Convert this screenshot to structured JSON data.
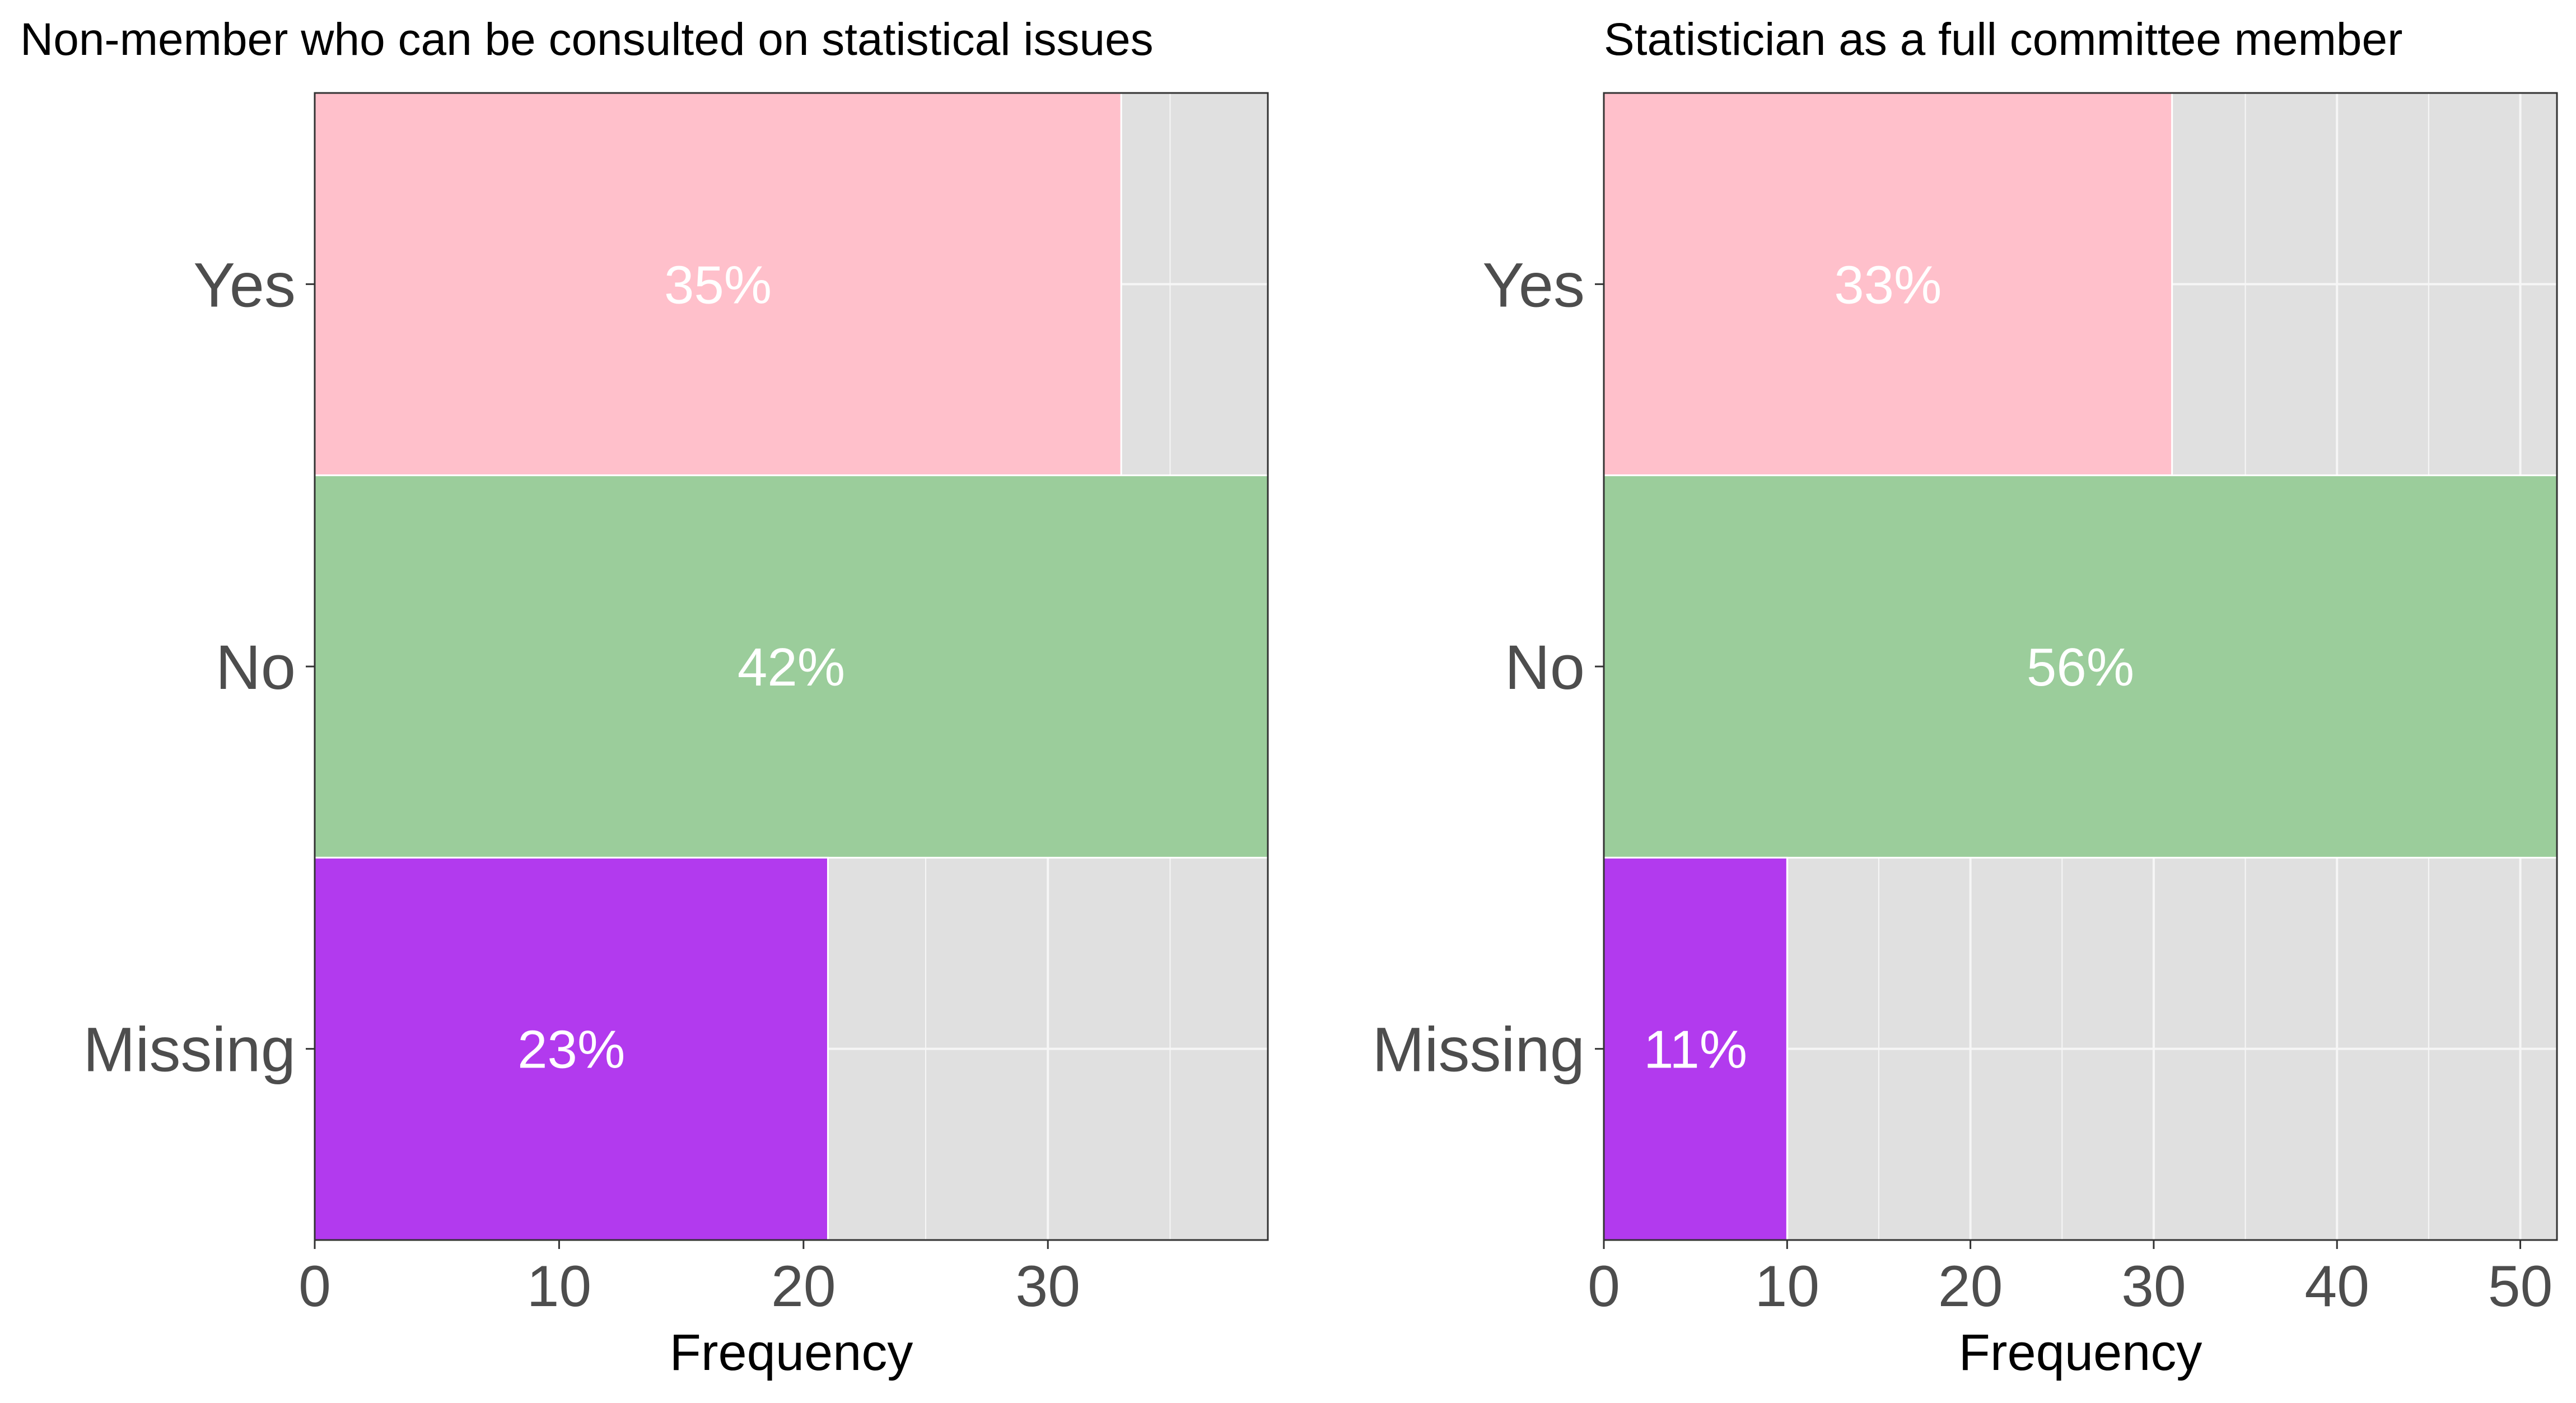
{
  "chart_data": [
    {
      "type": "bar",
      "orientation": "horizontal",
      "title": "Non-member who can be consulted on statistical issues",
      "xlabel": "Frequency",
      "ylabel": "",
      "categories": [
        "Yes",
        "No",
        "Missing"
      ],
      "values": [
        33,
        39,
        21
      ],
      "labels": [
        "35%",
        "42%",
        "23%"
      ],
      "colors": [
        "#FFC0CB",
        "#9BCD9B",
        "#B23AEE"
      ],
      "xticks": [
        0,
        10,
        20,
        30
      ],
      "xlim": [
        0,
        39
      ],
      "grid": true,
      "legend": "none"
    },
    {
      "type": "bar",
      "orientation": "horizontal",
      "title": "Statistician as a full committee member",
      "xlabel": "Frequency",
      "ylabel": "",
      "categories": [
        "Yes",
        "No",
        "Missing"
      ],
      "values": [
        31,
        52,
        10
      ],
      "labels": [
        "33%",
        "56%",
        "11%"
      ],
      "colors": [
        "#FFC0CB",
        "#9BCD9B",
        "#B23AEE"
      ],
      "xticks": [
        0,
        10,
        20,
        30,
        40,
        50
      ],
      "xlim": [
        0,
        52
      ],
      "grid": true,
      "legend": "none"
    }
  ]
}
